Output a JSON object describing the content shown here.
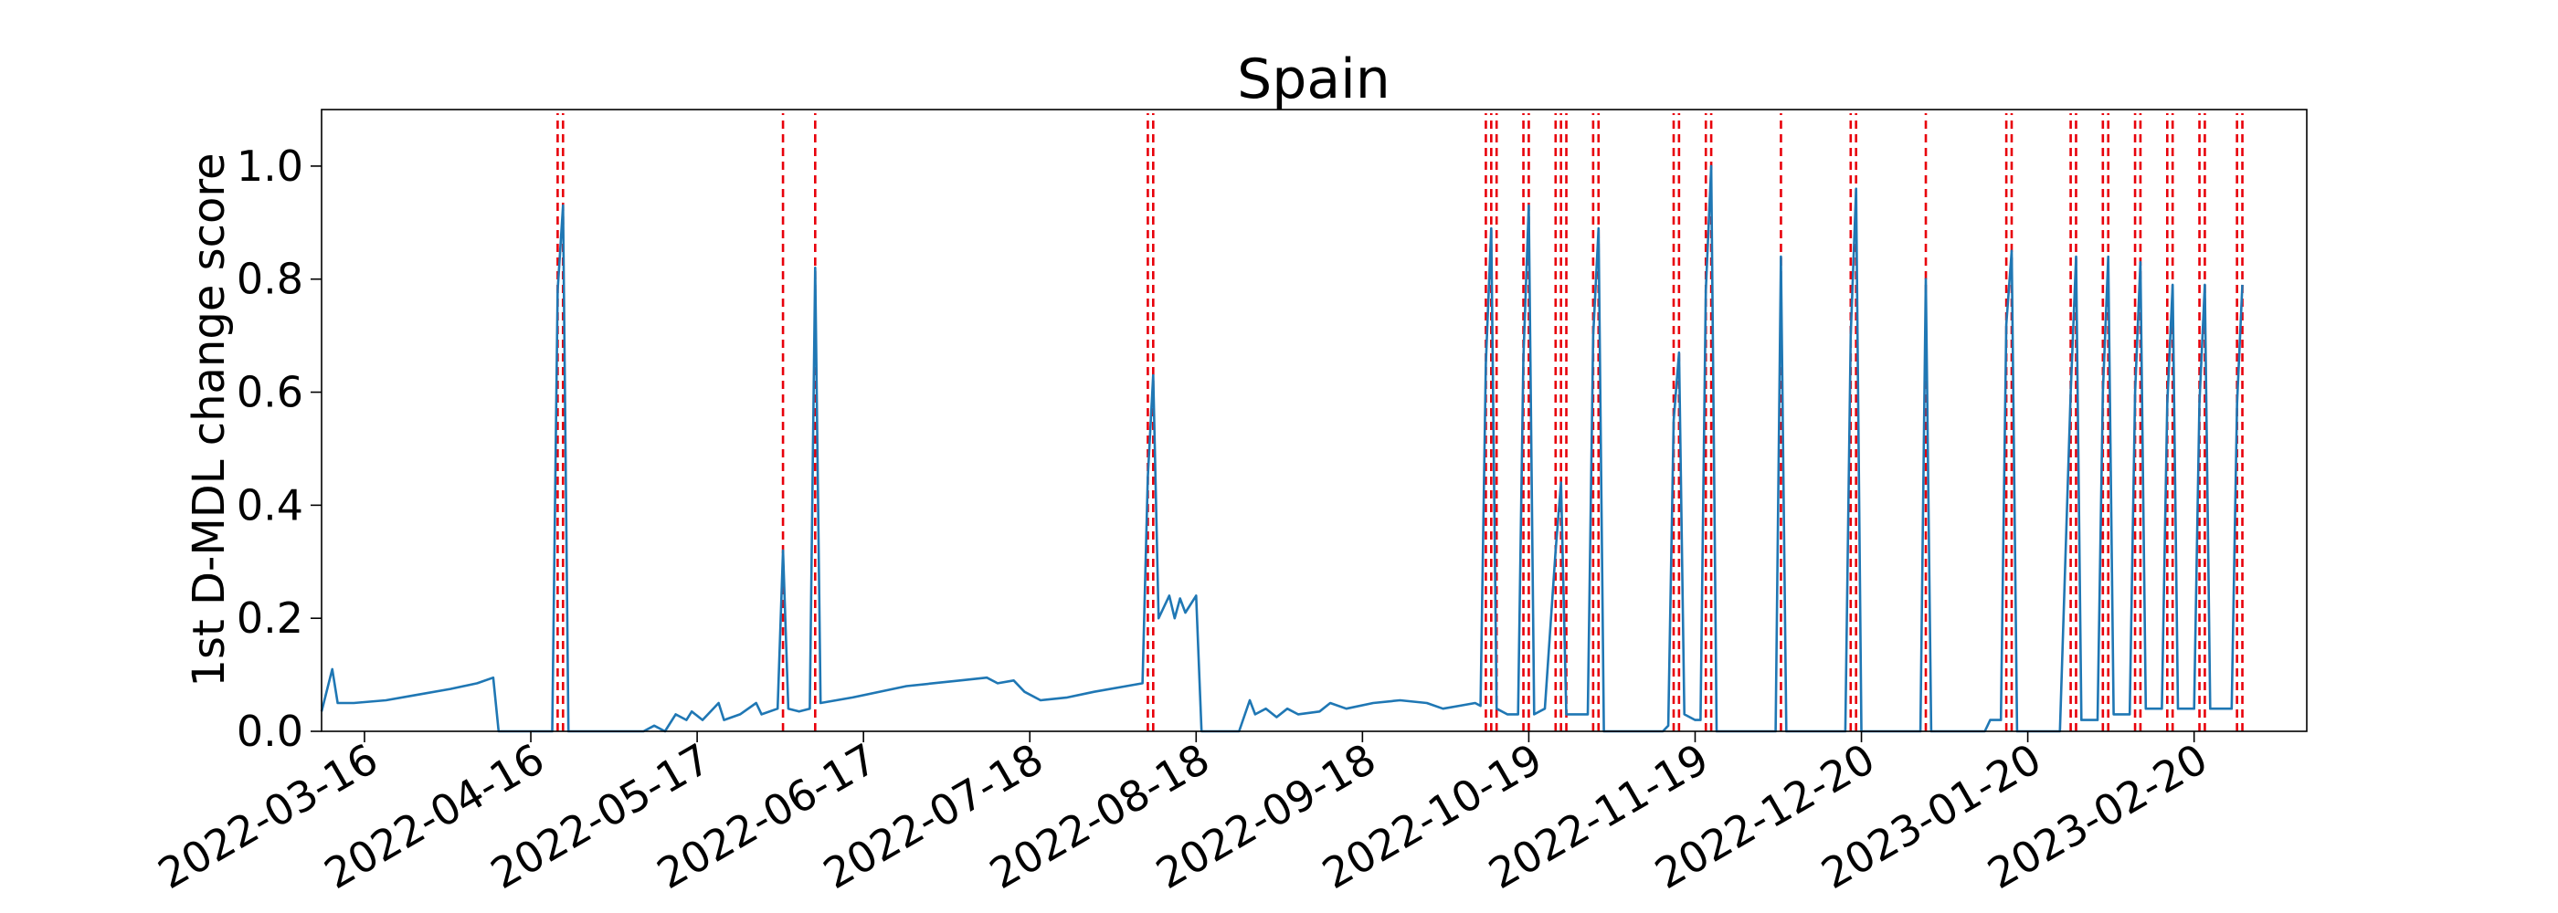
{
  "chart_data": {
    "type": "line",
    "title": "Spain",
    "ylabel": "1st D-MDL change score",
    "xlabel": "",
    "xlim": [
      "2022-03-08",
      "2023-03-13"
    ],
    "ylim": [
      0,
      1.1
    ],
    "x_ticks": [
      "2022-03-16",
      "2022-04-16",
      "2022-05-17",
      "2022-06-17",
      "2022-07-18",
      "2022-08-18",
      "2022-09-18",
      "2022-10-19",
      "2022-11-19",
      "2022-12-20",
      "2023-01-20",
      "2023-02-20"
    ],
    "y_ticks": [
      0.0,
      0.2,
      0.4,
      0.6,
      0.8,
      1.0
    ],
    "y_tick_labels": [
      "0.0",
      "0.2",
      "0.4",
      "0.6",
      "0.8",
      "1.0"
    ],
    "grid": false,
    "series": [
      {
        "color": "#1f77b4",
        "points": [
          [
            "2022-03-08",
            0.035
          ],
          [
            "2022-03-10",
            0.11
          ],
          [
            "2022-03-11",
            0.05
          ],
          [
            "2022-03-14",
            0.05
          ],
          [
            "2022-03-20",
            0.055
          ],
          [
            "2022-03-26",
            0.065
          ],
          [
            "2022-04-01",
            0.075
          ],
          [
            "2022-04-06",
            0.085
          ],
          [
            "2022-04-09",
            0.095
          ],
          [
            "2022-04-10",
            0.0
          ],
          [
            "2022-04-20",
            0.0
          ],
          [
            "2022-04-21",
            0.78
          ],
          [
            "2022-04-22",
            0.93
          ],
          [
            "2022-04-23",
            0.0
          ],
          [
            "2022-05-07",
            0.0
          ],
          [
            "2022-05-09",
            0.01
          ],
          [
            "2022-05-11",
            0.0
          ],
          [
            "2022-05-13",
            0.03
          ],
          [
            "2022-05-15",
            0.02
          ],
          [
            "2022-05-16",
            0.035
          ],
          [
            "2022-05-18",
            0.02
          ],
          [
            "2022-05-21",
            0.05
          ],
          [
            "2022-05-22",
            0.02
          ],
          [
            "2022-05-25",
            0.03
          ],
          [
            "2022-05-28",
            0.05
          ],
          [
            "2022-05-29",
            0.03
          ],
          [
            "2022-06-01",
            0.04
          ],
          [
            "2022-06-02",
            0.32
          ],
          [
            "2022-06-03",
            0.04
          ],
          [
            "2022-06-05",
            0.035
          ],
          [
            "2022-06-07",
            0.04
          ],
          [
            "2022-06-08",
            0.82
          ],
          [
            "2022-06-09",
            0.05
          ],
          [
            "2022-06-15",
            0.06
          ],
          [
            "2022-06-25",
            0.08
          ],
          [
            "2022-07-05",
            0.09
          ],
          [
            "2022-07-10",
            0.095
          ],
          [
            "2022-07-12",
            0.085
          ],
          [
            "2022-07-15",
            0.09
          ],
          [
            "2022-07-17",
            0.07
          ],
          [
            "2022-07-20",
            0.055
          ],
          [
            "2022-07-25",
            0.06
          ],
          [
            "2022-07-30",
            0.07
          ],
          [
            "2022-08-05",
            0.08
          ],
          [
            "2022-08-08",
            0.085
          ],
          [
            "2022-08-09",
            0.45
          ],
          [
            "2022-08-10",
            0.63
          ],
          [
            "2022-08-11",
            0.2
          ],
          [
            "2022-08-13",
            0.24
          ],
          [
            "2022-08-14",
            0.2
          ],
          [
            "2022-08-15",
            0.235
          ],
          [
            "2022-08-16",
            0.21
          ],
          [
            "2022-08-18",
            0.24
          ],
          [
            "2022-08-19",
            0.0
          ],
          [
            "2022-08-26",
            0.0
          ],
          [
            "2022-08-28",
            0.055
          ],
          [
            "2022-08-29",
            0.03
          ],
          [
            "2022-08-31",
            0.04
          ],
          [
            "2022-09-02",
            0.025
          ],
          [
            "2022-09-04",
            0.04
          ],
          [
            "2022-09-06",
            0.03
          ],
          [
            "2022-09-10",
            0.035
          ],
          [
            "2022-09-12",
            0.05
          ],
          [
            "2022-09-15",
            0.04
          ],
          [
            "2022-09-20",
            0.05
          ],
          [
            "2022-09-25",
            0.055
          ],
          [
            "2022-09-30",
            0.05
          ],
          [
            "2022-10-03",
            0.04
          ],
          [
            "2022-10-06",
            0.045
          ],
          [
            "2022-10-09",
            0.05
          ],
          [
            "2022-10-10",
            0.045
          ],
          [
            "2022-10-11",
            0.65
          ],
          [
            "2022-10-12",
            0.89
          ],
          [
            "2022-10-13",
            0.04
          ],
          [
            "2022-10-15",
            0.03
          ],
          [
            "2022-10-17",
            0.03
          ],
          [
            "2022-10-18",
            0.66
          ],
          [
            "2022-10-19",
            0.93
          ],
          [
            "2022-10-20",
            0.03
          ],
          [
            "2022-10-22",
            0.04
          ],
          [
            "2022-10-24",
            0.32
          ],
          [
            "2022-10-25",
            0.44
          ],
          [
            "2022-10-26",
            0.03
          ],
          [
            "2022-10-28",
            0.03
          ],
          [
            "2022-10-30",
            0.03
          ],
          [
            "2022-10-31",
            0.7
          ],
          [
            "2022-11-01",
            0.89
          ],
          [
            "2022-11-02",
            0.0
          ],
          [
            "2022-11-13",
            0.0
          ],
          [
            "2022-11-14",
            0.01
          ],
          [
            "2022-11-15",
            0.55
          ],
          [
            "2022-11-16",
            0.67
          ],
          [
            "2022-11-17",
            0.03
          ],
          [
            "2022-11-19",
            0.02
          ],
          [
            "2022-11-20",
            0.02
          ],
          [
            "2022-11-21",
            0.78
          ],
          [
            "2022-11-22",
            1.0
          ],
          [
            "2022-11-23",
            0.0
          ],
          [
            "2022-12-04",
            0.0
          ],
          [
            "2022-12-05",
            0.84
          ],
          [
            "2022-12-06",
            0.0
          ],
          [
            "2022-12-17",
            0.0
          ],
          [
            "2022-12-18",
            0.7
          ],
          [
            "2022-12-19",
            0.96
          ],
          [
            "2022-12-20",
            0.0
          ],
          [
            "2022-12-31",
            0.0
          ],
          [
            "2023-01-01",
            0.8
          ],
          [
            "2023-01-02",
            0.0
          ],
          [
            "2023-01-12",
            0.0
          ],
          [
            "2023-01-13",
            0.02
          ],
          [
            "2023-01-15",
            0.02
          ],
          [
            "2023-01-16",
            0.72
          ],
          [
            "2023-01-17",
            0.85
          ],
          [
            "2023-01-18",
            0.0
          ],
          [
            "2023-01-26",
            0.0
          ],
          [
            "2023-01-28",
            0.6
          ],
          [
            "2023-01-29",
            0.84
          ],
          [
            "2023-01-30",
            0.02
          ],
          [
            "2023-02-02",
            0.02
          ],
          [
            "2023-02-03",
            0.6
          ],
          [
            "2023-02-04",
            0.84
          ],
          [
            "2023-02-05",
            0.03
          ],
          [
            "2023-02-08",
            0.03
          ],
          [
            "2023-02-09",
            0.6
          ],
          [
            "2023-02-10",
            0.83
          ],
          [
            "2023-02-11",
            0.04
          ],
          [
            "2023-02-14",
            0.04
          ],
          [
            "2023-02-15",
            0.58
          ],
          [
            "2023-02-16",
            0.79
          ],
          [
            "2023-02-17",
            0.04
          ],
          [
            "2023-02-20",
            0.04
          ],
          [
            "2023-02-21",
            0.58
          ],
          [
            "2023-02-22",
            0.79
          ],
          [
            "2023-02-23",
            0.04
          ],
          [
            "2023-02-27",
            0.04
          ],
          [
            "2023-02-28",
            0.58
          ],
          [
            "2023-03-01",
            0.79
          ]
        ]
      }
    ],
    "change_points": {
      "color": "#e8000b",
      "style": "dashed",
      "dates": [
        "2022-04-21",
        "2022-04-22",
        "2022-06-02",
        "2022-06-08",
        "2022-08-09",
        "2022-08-10",
        "2022-10-11",
        "2022-10-12",
        "2022-10-13",
        "2022-10-18",
        "2022-10-19",
        "2022-10-24",
        "2022-10-25",
        "2022-10-26",
        "2022-10-31",
        "2022-11-01",
        "2022-11-15",
        "2022-11-16",
        "2022-11-21",
        "2022-11-22",
        "2022-12-05",
        "2022-12-18",
        "2022-12-19",
        "2023-01-01",
        "2023-01-16",
        "2023-01-17",
        "2023-01-28",
        "2023-01-29",
        "2023-02-03",
        "2023-02-04",
        "2023-02-09",
        "2023-02-10",
        "2023-02-15",
        "2023-02-16",
        "2023-02-21",
        "2023-02-22",
        "2023-02-28",
        "2023-03-01"
      ]
    }
  }
}
